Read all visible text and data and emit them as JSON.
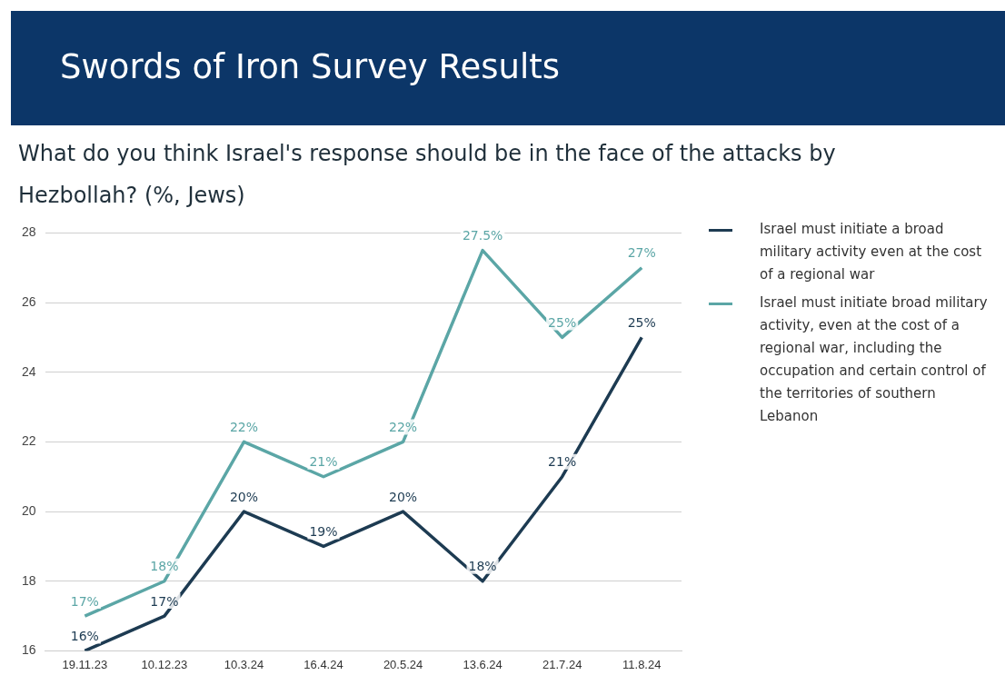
{
  "chart_data": {
    "type": "line",
    "title": "Swords of Iron Survey Results",
    "subtitle": "What do you think Israel's response should be in the face of the attacks by Hezbollah? (%, Jews)",
    "categories": [
      "19.11.23",
      "10.12.23",
      "10.3.24",
      "16.4.24",
      "20.5.24",
      "13.6.24",
      "21.7.24",
      "11.8.24"
    ],
    "series": [
      {
        "name": "Israel must initiate a broad military activity even at the cost of a regional war",
        "color": "#1d3b52",
        "values": [
          16,
          17,
          20,
          19,
          20,
          18,
          21,
          25
        ],
        "value_labels": [
          "16%",
          "17%",
          "20%",
          "19%",
          "20%",
          "18%",
          "21%",
          "25%"
        ]
      },
      {
        "name": "Israel must initiate broad military activity, even at the cost of a regional war, including the occupation and certain control of the territories of southern Lebanon",
        "color": "#5ba6a6",
        "values": [
          17,
          18,
          22,
          21,
          22,
          27.5,
          25,
          27
        ],
        "value_labels": [
          "17%",
          "18%",
          "22%",
          "21%",
          "22%",
          "27.5%",
          "25%",
          "27%"
        ]
      }
    ],
    "ylim": [
      16,
      28
    ],
    "yticks": [
      16,
      18,
      20,
      22,
      24,
      26,
      28
    ],
    "grid": "y",
    "legend": "right",
    "marker": "none",
    "line_style": "solid"
  }
}
